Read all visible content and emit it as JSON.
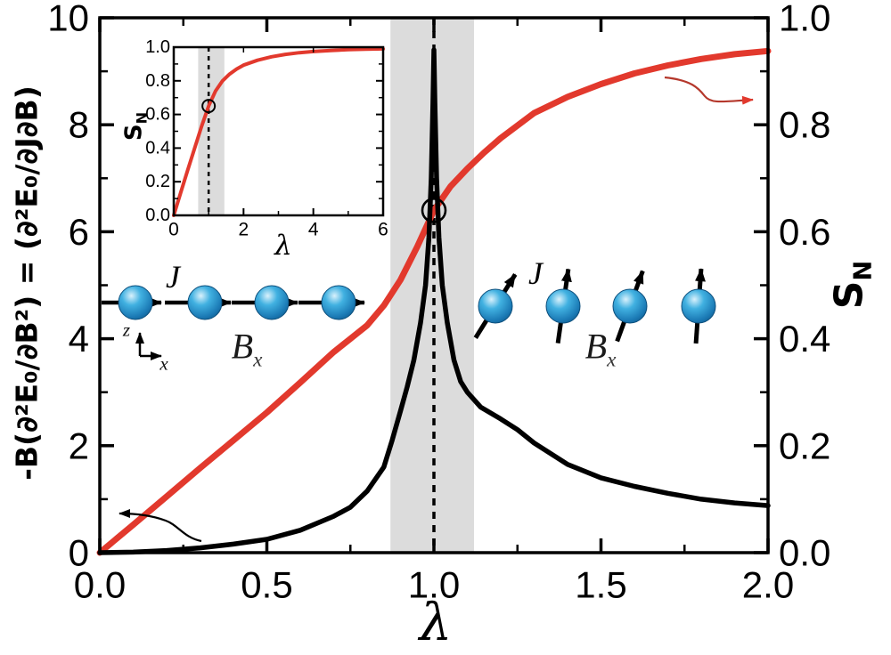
{
  "colors": {
    "curve_red": "#e2392d",
    "curve_black": "#000000",
    "band_gray": "#dcdcdc",
    "arrow_red": "#b5382c",
    "sphere_highlight": "#d9f1fc",
    "sphere_mid": "#41b1e1",
    "sphere_deep": "#1b7ab5",
    "sphere_edge": "#0f5c8f"
  },
  "annotations": {
    "left_chain": {
      "coupling_label": "J",
      "field_label": "B",
      "field_subscript": "x",
      "axis_vertical_label": "z",
      "axis_horizontal_label": "x"
    },
    "right_chain": {
      "coupling_label": "J",
      "field_label": "B",
      "field_subscript": "x"
    }
  },
  "chart_data": [
    {
      "type": "line",
      "name": "main",
      "xlabel": "λ",
      "ylabel_left": "-B(∂²E₀/∂B²) = (∂²E₀/∂J∂B)",
      "ylabel_right": {
        "base": "S",
        "sub": "N"
      },
      "xlim": [
        0,
        2
      ],
      "ylim_left": [
        0,
        10
      ],
      "ylim_right": [
        0,
        1
      ],
      "grid": false,
      "x_ticks": {
        "values": [
          0,
          0.5,
          1,
          1.5,
          2
        ],
        "labels": [
          "0.0",
          "0.5",
          "1.0",
          "1.5",
          "2.0"
        ],
        "minor": [
          0.25,
          0.75,
          1.25,
          1.75
        ]
      },
      "yleft_ticks": {
        "values": [
          0,
          2,
          4,
          6,
          8,
          10
        ],
        "labels": [
          "0",
          "2",
          "4",
          "6",
          "8",
          "10"
        ],
        "minor": [
          1,
          3,
          5,
          7,
          9
        ]
      },
      "yright_ticks": {
        "values": [
          0,
          0.2,
          0.4,
          0.6,
          0.8,
          1
        ],
        "labels": [
          "0.0",
          "0.2",
          "0.4",
          "0.6",
          "0.8",
          "1.0"
        ],
        "minor": [
          0.1,
          0.3,
          0.5,
          0.7,
          0.9
        ]
      },
      "shaded_band_x": [
        0.87,
        1.12
      ],
      "dashed_line_x": 1.0,
      "marker": {
        "x": 1.0,
        "y": 0.64,
        "axis": "right"
      },
      "series": [
        {
          "name": "entanglement-entropy",
          "axis": "right",
          "color": "#e2392d",
          "points": [
            [
              0,
              0
            ],
            [
              0.1,
              0.052
            ],
            [
              0.2,
              0.105
            ],
            [
              0.3,
              0.158
            ],
            [
              0.4,
              0.21
            ],
            [
              0.5,
              0.262
            ],
            [
              0.6,
              0.318
            ],
            [
              0.7,
              0.375
            ],
            [
              0.75,
              0.4
            ],
            [
              0.8,
              0.425
            ],
            [
              0.85,
              0.462
            ],
            [
              0.9,
              0.51
            ],
            [
              0.95,
              0.572
            ],
            [
              1.0,
              0.64
            ],
            [
              1.05,
              0.685
            ],
            [
              1.1,
              0.718
            ],
            [
              1.15,
              0.748
            ],
            [
              1.2,
              0.775
            ],
            [
              1.3,
              0.822
            ],
            [
              1.4,
              0.852
            ],
            [
              1.5,
              0.876
            ],
            [
              1.6,
              0.896
            ],
            [
              1.7,
              0.911
            ],
            [
              1.8,
              0.923
            ],
            [
              1.9,
              0.932
            ],
            [
              2.0,
              0.938
            ]
          ]
        },
        {
          "name": "energy-cross-derivative",
          "axis": "left",
          "color": "#000000",
          "points": [
            [
              0,
              0
            ],
            [
              0.1,
              0.01
            ],
            [
              0.2,
              0.04
            ],
            [
              0.3,
              0.09
            ],
            [
              0.4,
              0.16
            ],
            [
              0.5,
              0.25
            ],
            [
              0.6,
              0.42
            ],
            [
              0.7,
              0.68
            ],
            [
              0.75,
              0.85
            ],
            [
              0.8,
              1.15
            ],
            [
              0.85,
              1.6
            ],
            [
              0.875,
              2.1
            ],
            [
              0.9,
              2.65
            ],
            [
              0.92,
              3.1
            ],
            [
              0.94,
              3.6
            ],
            [
              0.96,
              4.3
            ],
            [
              0.975,
              5.0
            ],
            [
              0.985,
              5.9
            ],
            [
              0.992,
              7.0
            ],
            [
              0.997,
              8.4
            ],
            [
              1.0,
              9.4
            ],
            [
              1.003,
              8.4
            ],
            [
              1.008,
              7.0
            ],
            [
              1.015,
              5.9
            ],
            [
              1.025,
              5.0
            ],
            [
              1.04,
              4.3
            ],
            [
              1.06,
              3.6
            ],
            [
              1.08,
              3.2
            ],
            [
              1.1,
              3.0
            ],
            [
              1.14,
              2.72
            ],
            [
              1.2,
              2.5
            ],
            [
              1.25,
              2.3
            ],
            [
              1.3,
              2.05
            ],
            [
              1.4,
              1.65
            ],
            [
              1.5,
              1.4
            ],
            [
              1.6,
              1.24
            ],
            [
              1.7,
              1.11
            ],
            [
              1.8,
              1.0
            ],
            [
              1.9,
              0.93
            ],
            [
              2.0,
              0.88
            ]
          ]
        }
      ]
    },
    {
      "type": "line",
      "name": "inset",
      "xlabel": "λ",
      "ylabel": {
        "base": "S",
        "sub": "N"
      },
      "xlim": [
        0,
        6
      ],
      "ylim": [
        0,
        1
      ],
      "grid": false,
      "x_ticks": {
        "values": [
          0,
          2,
          4,
          6
        ],
        "labels": [
          "0",
          "2",
          "4",
          "6"
        ],
        "minor": [
          1,
          3,
          5
        ]
      },
      "y_ticks": {
        "values": [
          0,
          0.2,
          0.4,
          0.6,
          0.8,
          1
        ],
        "labels": [
          "0.0",
          "0.2",
          "0.4",
          "0.6",
          "0.8",
          "1.0"
        ],
        "minor": [
          0.1,
          0.3,
          0.5,
          0.7,
          0.9
        ]
      },
      "shaded_band_x": [
        0.7,
        1.45
      ],
      "dashed_line_x": 1.0,
      "marker": {
        "x": 1.0,
        "y": 0.65
      },
      "series": [
        {
          "name": "entanglement-entropy",
          "color": "#e2392d",
          "points": [
            [
              0,
              0
            ],
            [
              0.2,
              0.135
            ],
            [
              0.4,
              0.27
            ],
            [
              0.6,
              0.4
            ],
            [
              0.8,
              0.53
            ],
            [
              1.0,
              0.65
            ],
            [
              1.2,
              0.74
            ],
            [
              1.4,
              0.8
            ],
            [
              1.6,
              0.84
            ],
            [
              1.8,
              0.87
            ],
            [
              2.0,
              0.893
            ],
            [
              2.4,
              0.922
            ],
            [
              2.8,
              0.943
            ],
            [
              3.2,
              0.957
            ],
            [
              3.6,
              0.967
            ],
            [
              4.0,
              0.974
            ],
            [
              4.5,
              0.98
            ],
            [
              5.0,
              0.985
            ],
            [
              5.5,
              0.988
            ],
            [
              6.0,
              0.99
            ]
          ]
        }
      ]
    }
  ]
}
